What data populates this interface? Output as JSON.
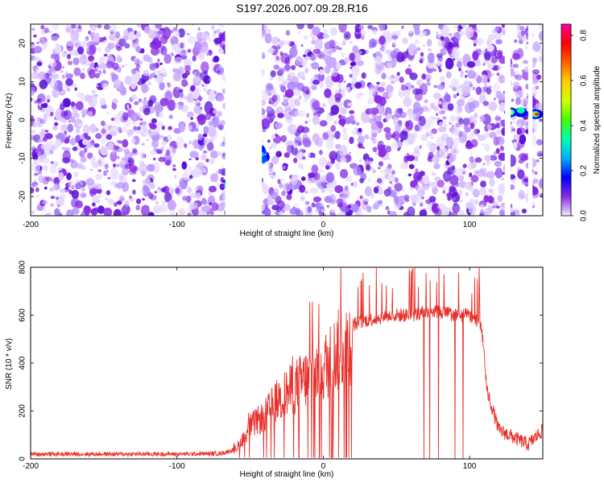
{
  "title": "S197.2026.007.09.28.R16",
  "chart_data": [
    {
      "type": "heatmap",
      "xlabel": "Height of straight line (km)",
      "ylabel": "Frequency (Hz)",
      "xlim": [
        -200,
        150
      ],
      "ylim": [
        -25,
        25
      ],
      "xticks": [
        -200,
        -100,
        0,
        100
      ],
      "yticks": [
        20,
        10,
        0,
        -10,
        -20
      ],
      "blank_ranges_km": [
        [
          -67,
          -42
        ],
        [
          124,
          128
        ],
        [
          140,
          143
        ]
      ],
      "signals": [
        {
          "x_range": [
            -68,
            -38
          ],
          "freq_range": [
            -20,
            -8
          ],
          "peak_amplitude": 0.3
        },
        {
          "x_range": [
            125,
            150
          ],
          "freq_range": [
            0,
            4
          ],
          "peak_amplitude": 0.82
        }
      ],
      "colorbar": {
        "label": "Normalized spectral amplitude",
        "range": [
          0.0,
          0.85
        ],
        "ticks": [
          "0.0",
          "0.2",
          "0.4",
          "0.6",
          "0.8"
        ],
        "colors": [
          "#f0e8ff",
          "#8a2be2",
          "#0000ff",
          "#00b0ff",
          "#00ffb0",
          "#40ff00",
          "#d0ff00",
          "#ffd000",
          "#ff6000",
          "#ff0000",
          "#ff00a0"
        ]
      }
    },
    {
      "type": "line",
      "xlabel": "Height of straight line (km)",
      "ylabel": "SNR (10 * v/v)",
      "xlim": [
        -200,
        150
      ],
      "ylim": [
        0,
        800
      ],
      "xticks": [
        -200,
        -100,
        0,
        100
      ],
      "yticks": [
        0,
        200,
        400,
        600,
        800
      ],
      "series": [
        {
          "name": "SNR",
          "color": "#e8302a",
          "x": [
            -200,
            -150,
            -100,
            -70,
            -60,
            -50,
            -40,
            -30,
            -20,
            -10,
            0,
            10,
            20,
            30,
            40,
            50,
            60,
            70,
            80,
            90,
            100,
            108,
            112,
            120,
            130,
            140,
            150
          ],
          "y": [
            20,
            20,
            20,
            22,
            40,
            150,
            200,
            280,
            330,
            380,
            420,
            500,
            560,
            580,
            590,
            600,
            600,
            610,
            615,
            600,
            600,
            560,
            280,
            120,
            90,
            60,
            120
          ]
        }
      ]
    }
  ]
}
